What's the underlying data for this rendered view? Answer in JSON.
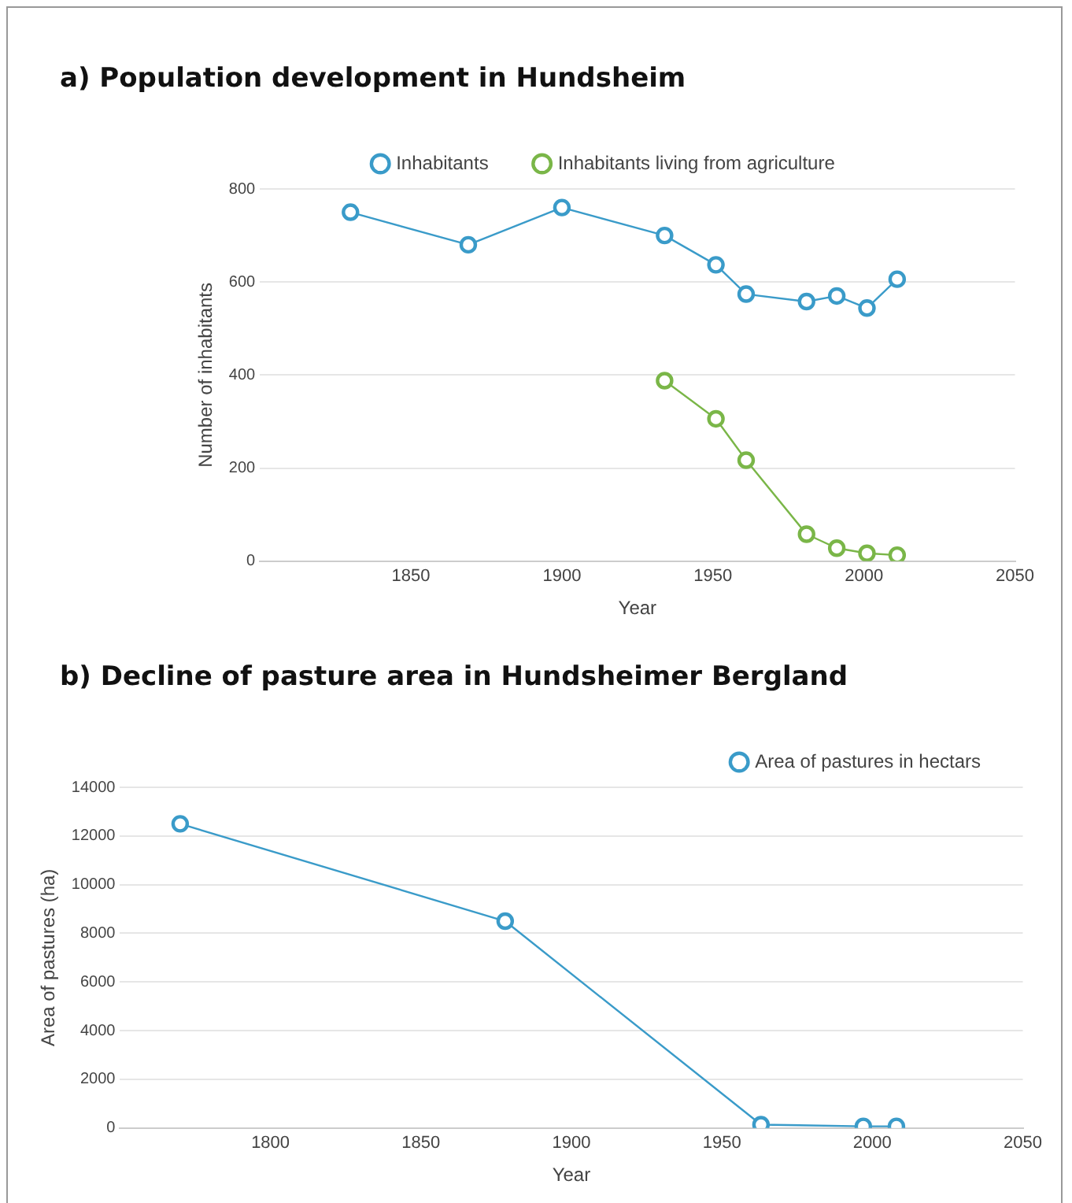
{
  "chart_data": [
    {
      "type": "line",
      "title": "a) Population development in Hundsheim",
      "xlabel": "Year",
      "ylabel": "Number of inhabitants",
      "xlim": [
        1800,
        2050
      ],
      "xticks": [
        1850,
        1900,
        1950,
        2000,
        2050
      ],
      "ylim": [
        0,
        800
      ],
      "yticks": [
        0,
        200,
        400,
        600,
        800
      ],
      "grid": "y",
      "legend": "top",
      "marker": "circle",
      "series": [
        {
          "name": "Inhabitants",
          "color": "#3a9bc9",
          "x": [
            1830,
            1869,
            1900,
            1934,
            1951,
            1961,
            1981,
            1991,
            2001,
            2011
          ],
          "values": [
            750,
            680,
            760,
            700,
            637,
            574,
            558,
            570,
            544,
            606
          ]
        },
        {
          "name": "Inhabitants living from agriculture",
          "color": "#7ab648",
          "x": [
            1934,
            1951,
            1961,
            1981,
            1991,
            2001,
            2011
          ],
          "values": [
            388,
            306,
            217,
            58,
            28,
            17,
            13
          ]
        }
      ]
    },
    {
      "type": "line",
      "title": "b) Decline of pasture area in Hundsheimer Bergland",
      "xlabel": "Year",
      "ylabel": "Area of pastures (ha)",
      "xlim": [
        1750,
        2050
      ],
      "xticks": [
        1800,
        1850,
        1900,
        1950,
        2000,
        2050
      ],
      "ylim": [
        0,
        14000
      ],
      "yticks": [
        0,
        2000,
        4000,
        6000,
        8000,
        10000,
        12000,
        14000
      ],
      "grid": "y",
      "legend": "top right",
      "marker": "circle",
      "series": [
        {
          "name": "Area of pastures in hectars",
          "color": "#3a9bc9",
          "x": [
            1770,
            1878,
            1963,
            1997,
            2008
          ],
          "values": [
            12500,
            8500,
            140,
            70,
            70
          ]
        }
      ]
    }
  ]
}
